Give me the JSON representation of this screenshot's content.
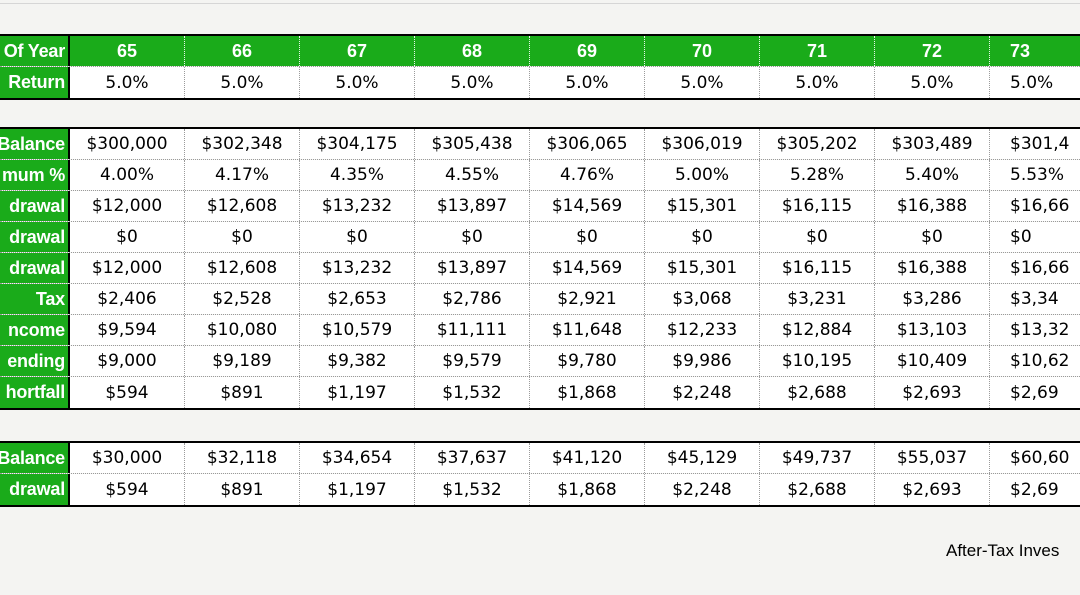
{
  "columns": [
    "65",
    "66",
    "67",
    "68",
    "69",
    "70",
    "71",
    "72",
    "73"
  ],
  "age_table": {
    "rows": [
      {
        "label": "Of Year",
        "values": [
          "65",
          "66",
          "67",
          "68",
          "69",
          "70",
          "71",
          "72",
          "73"
        ]
      },
      {
        "label": "Return",
        "values": [
          "5.0%",
          "5.0%",
          "5.0%",
          "5.0%",
          "5.0%",
          "5.0%",
          "5.0%",
          "5.0%",
          "5.0%"
        ]
      }
    ]
  },
  "main_table": {
    "rows": [
      {
        "label": "Balance",
        "values": [
          "$300,000",
          "$302,348",
          "$304,175",
          "$305,438",
          "$306,065",
          "$306,019",
          "$305,202",
          "$303,489",
          "$301,4"
        ]
      },
      {
        "label": "mum %",
        "values": [
          "4.00%",
          "4.17%",
          "4.35%",
          "4.55%",
          "4.76%",
          "5.00%",
          "5.28%",
          "5.40%",
          "5.53%"
        ]
      },
      {
        "label": "drawal",
        "values": [
          "$12,000",
          "$12,608",
          "$13,232",
          "$13,897",
          "$14,569",
          "$15,301",
          "$16,115",
          "$16,388",
          "$16,66"
        ]
      },
      {
        "label": "drawal",
        "values": [
          "$0",
          "$0",
          "$0",
          "$0",
          "$0",
          "$0",
          "$0",
          "$0",
          "$0"
        ]
      },
      {
        "label": "drawal",
        "values": [
          "$12,000",
          "$12,608",
          "$13,232",
          "$13,897",
          "$14,569",
          "$15,301",
          "$16,115",
          "$16,388",
          "$16,66"
        ]
      },
      {
        "label": "Tax",
        "values": [
          "$2,406",
          "$2,528",
          "$2,653",
          "$2,786",
          "$2,921",
          "$3,068",
          "$3,231",
          "$3,286",
          "$3,34"
        ]
      },
      {
        "label": "ncome",
        "values": [
          "$9,594",
          "$10,080",
          "$10,579",
          "$11,111",
          "$11,648",
          "$12,233",
          "$12,884",
          "$13,103",
          "$13,32"
        ]
      },
      {
        "label": "ending",
        "values": [
          "$9,000",
          "$9,189",
          "$9,382",
          "$9,579",
          "$9,780",
          "$9,986",
          "$10,195",
          "$10,409",
          "$10,62"
        ]
      },
      {
        "label": "hortfall",
        "values": [
          "$594",
          "$891",
          "$1,197",
          "$1,532",
          "$1,868",
          "$2,248",
          "$2,688",
          "$2,693",
          "$2,69"
        ]
      }
    ]
  },
  "tfsa_table": {
    "rows": [
      {
        "label": "Balance",
        "values": [
          "$30,000",
          "$32,118",
          "$34,654",
          "$37,637",
          "$41,120",
          "$45,129",
          "$49,737",
          "$55,037",
          "$60,60"
        ]
      },
      {
        "label": "drawal",
        "values": [
          "$594",
          "$891",
          "$1,197",
          "$1,532",
          "$1,868",
          "$2,248",
          "$2,688",
          "$2,693",
          "$2,69"
        ]
      }
    ]
  },
  "footer_text": "After-Tax Inves"
}
